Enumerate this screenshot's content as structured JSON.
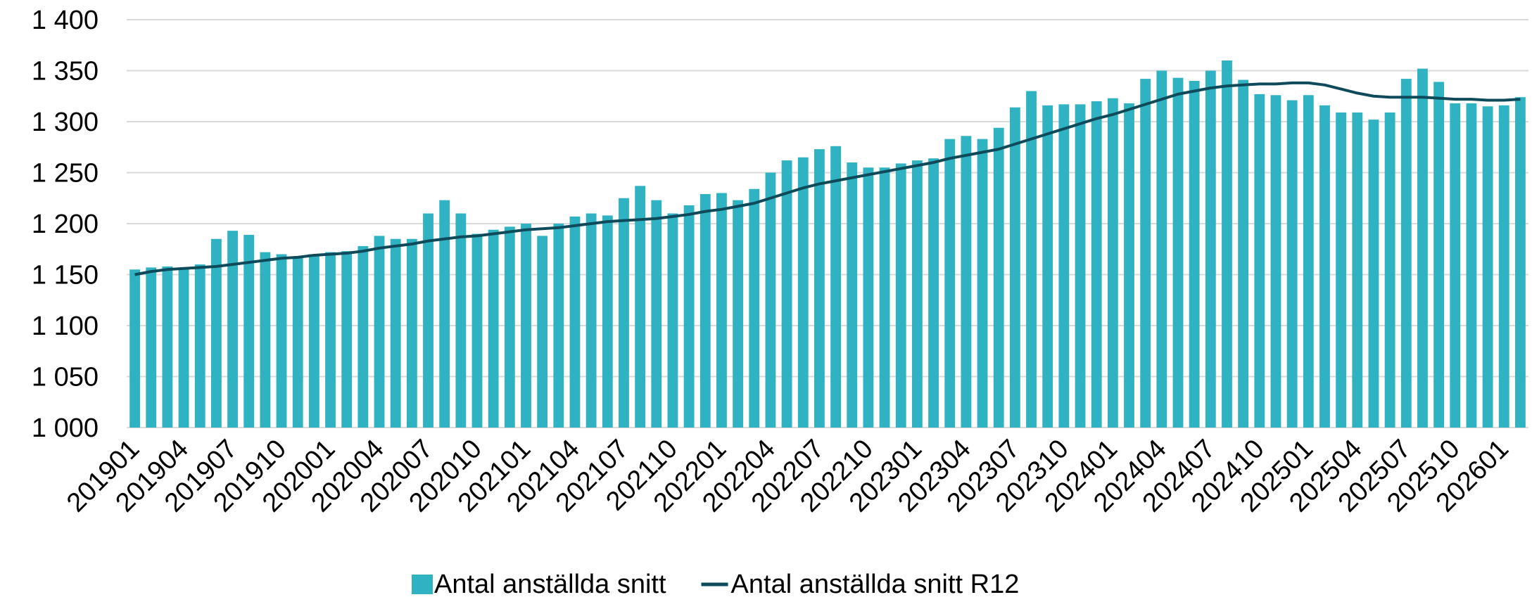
{
  "chart_data": {
    "type": "bar",
    "categories": [
      "201901",
      null,
      null,
      "201904",
      null,
      null,
      "201907",
      null,
      null,
      "201910",
      null,
      null,
      "202001",
      null,
      null,
      "202004",
      null,
      null,
      "202007",
      null,
      null,
      "202010",
      null,
      null,
      "202101",
      null,
      null,
      "202104",
      null,
      null,
      "202107",
      null,
      null,
      "202110",
      null,
      null,
      "202201",
      null,
      null,
      "202204",
      null,
      null,
      "202207",
      null,
      null,
      "202210",
      null,
      null,
      "202301",
      null,
      null,
      "202304",
      null,
      null,
      "202307",
      null,
      null,
      "202310",
      null,
      null,
      "202401",
      null,
      null,
      "202404",
      null,
      null,
      "202407",
      null,
      null,
      "202410",
      null,
      null,
      "202501",
      null,
      null,
      "202504",
      null,
      null,
      "202507",
      null,
      null,
      "202510",
      null,
      null,
      "202601",
      null
    ],
    "series": [
      {
        "name": "Antal anställda snitt",
        "type": "bar",
        "color": "#2fb3c3",
        "values": [
          1155,
          1157,
          1158,
          1156,
          1160,
          1185,
          1193,
          1189,
          1172,
          1170,
          1168,
          1170,
          1172,
          1173,
          1178,
          1188,
          1185,
          1185,
          1210,
          1223,
          1210,
          1190,
          1194,
          1197,
          1200,
          1188,
          1200,
          1207,
          1210,
          1208,
          1225,
          1237,
          1223,
          1210,
          1218,
          1229,
          1230,
          1223,
          1234,
          1250,
          1262,
          1265,
          1273,
          1276,
          1260,
          1255,
          1255,
          1259,
          1262,
          1264,
          1283,
          1286,
          1283,
          1294,
          1314,
          1330,
          1316,
          1317,
          1317,
          1320,
          1323,
          1318,
          1342,
          1350,
          1343,
          1340,
          1350,
          1360,
          1341,
          1327,
          1326,
          1321,
          1326,
          1316,
          1309,
          1309,
          1302,
          1309,
          1342,
          1352,
          1339,
          1318,
          1318,
          1315,
          1316,
          1324
        ]
      },
      {
        "name": "Antal anställda snitt R12",
        "type": "line",
        "color": "#0e4a5a",
        "values": [
          1150,
          1153,
          1155,
          1156,
          1157,
          1158,
          1160,
          1162,
          1164,
          1166,
          1167,
          1169,
          1170,
          1171,
          1173,
          1176,
          1178,
          1180,
          1183,
          1185,
          1187,
          1188,
          1190,
          1192,
          1194,
          1195,
          1196,
          1198,
          1200,
          1202,
          1203,
          1204,
          1205,
          1207,
          1209,
          1212,
          1214,
          1217,
          1220,
          1225,
          1230,
          1235,
          1239,
          1242,
          1245,
          1248,
          1251,
          1254,
          1257,
          1260,
          1264,
          1267,
          1270,
          1273,
          1278,
          1283,
          1288,
          1293,
          1298,
          1303,
          1307,
          1312,
          1317,
          1322,
          1327,
          1330,
          1333,
          1335,
          1336,
          1337,
          1337,
          1338,
          1338,
          1336,
          1332,
          1328,
          1325,
          1324,
          1324,
          1324,
          1323,
          1322,
          1322,
          1321,
          1321,
          1322
        ]
      }
    ],
    "ylim": [
      1000,
      1400
    ],
    "yticks": [
      {
        "value": 1000,
        "label": "1 000"
      },
      {
        "value": 1050,
        "label": "1 050"
      },
      {
        "value": 1100,
        "label": "1 100"
      },
      {
        "value": 1150,
        "label": "1 150"
      },
      {
        "value": 1200,
        "label": "1 200"
      },
      {
        "value": 1250,
        "label": "1 250"
      },
      {
        "value": 1300,
        "label": "1 300"
      },
      {
        "value": 1350,
        "label": "1 350"
      },
      {
        "value": 1400,
        "label": "1 400"
      }
    ],
    "grid": true,
    "legend": "bottom"
  }
}
